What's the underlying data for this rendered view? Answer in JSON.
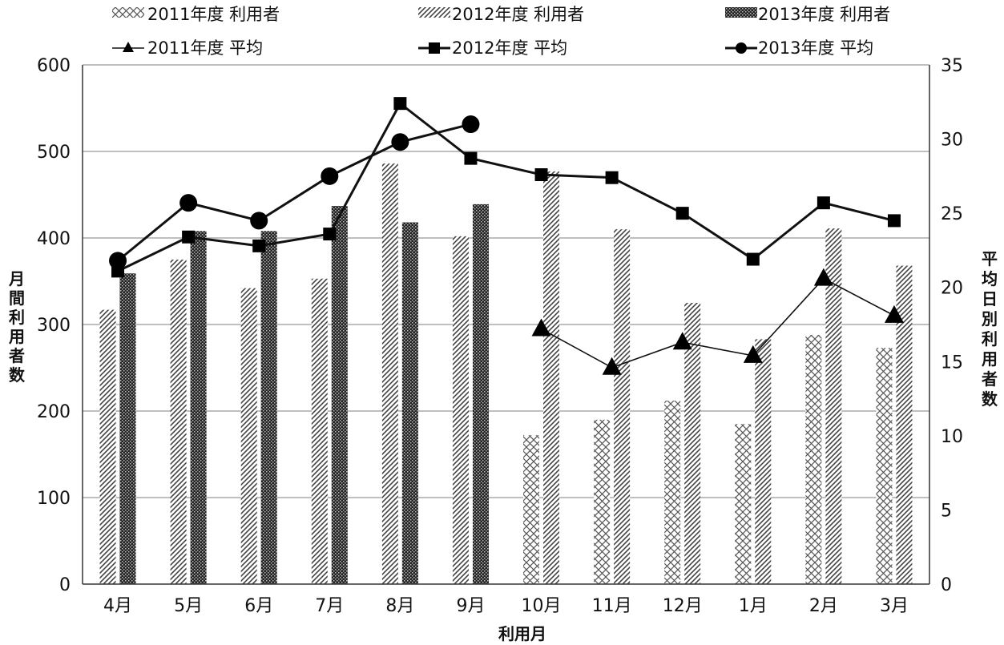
{
  "chart_data": {
    "type": "bar",
    "xlabel": "利用月",
    "ylabel": "月間利用者数",
    "y2label": "平均日別利用者数",
    "categories": [
      "4月",
      "5月",
      "6月",
      "7月",
      "8月",
      "9月",
      "10月",
      "11月",
      "12月",
      "1月",
      "2月",
      "3月"
    ],
    "ylim": [
      0,
      600
    ],
    "y_ticks": [
      0,
      100,
      200,
      300,
      400,
      500,
      600
    ],
    "y2lim": [
      0,
      35
    ],
    "y2_ticks": [
      0,
      5,
      10,
      15,
      20,
      25,
      30,
      35
    ],
    "grid": "horizontal",
    "legend": "top",
    "bar_series": [
      {
        "name": "2011年度 利用者",
        "pattern": "crosshatch",
        "values": [
          null,
          null,
          null,
          null,
          null,
          null,
          172,
          190,
          212,
          185,
          288,
          273
        ]
      },
      {
        "name": "2012年度 利用者",
        "pattern": "diagonal",
        "values": [
          317,
          375,
          342,
          353,
          486,
          402,
          477,
          410,
          325,
          283,
          411,
          368
        ]
      },
      {
        "name": "2013年度 利用者",
        "pattern": "dense",
        "values": [
          359,
          408,
          408,
          437,
          418,
          439,
          null,
          null,
          null,
          null,
          null,
          null
        ]
      }
    ],
    "line_series": [
      {
        "name": "2011年度 平均",
        "marker": "triangle",
        "axis": "right",
        "values": [
          null,
          null,
          null,
          null,
          null,
          null,
          17.2,
          14.6,
          16.3,
          15.4,
          20.6,
          18.1
        ]
      },
      {
        "name": "2012年度 平均",
        "marker": "square",
        "axis": "right",
        "values": [
          21.1,
          23.4,
          22.8,
          23.6,
          32.4,
          28.7,
          27.6,
          27.4,
          25.0,
          21.9,
          25.7,
          24.5
        ]
      },
      {
        "name": "2013年度 平均",
        "marker": "circle",
        "axis": "right",
        "values": [
          21.8,
          25.7,
          24.5,
          27.5,
          29.8,
          31.0,
          null,
          null,
          null,
          null,
          null,
          null
        ]
      }
    ]
  }
}
